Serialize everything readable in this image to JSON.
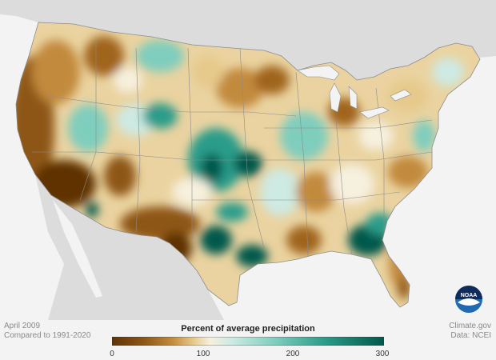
{
  "map": {
    "title_left": [
      "April 2009",
      "Compared to 1991-2020"
    ],
    "source_right": [
      "Climate.gov",
      "Data: NCEI"
    ],
    "logo_text": "NOAA",
    "legend": {
      "title": "Percent of average precipitation",
      "ticks": [
        "0",
        "100",
        "200",
        "300"
      ],
      "colors": [
        "#5e3306",
        "#8e5716",
        "#c28a3c",
        "#e6c98b",
        "#f6f0de",
        "#cdeae3",
        "#7fcdbd",
        "#2c9c8a",
        "#01584b"
      ]
    },
    "colors": {
      "water": "#f3f3f3",
      "land_outside": "#dcdcdc",
      "state_lines": "#8c8c8c"
    }
  }
}
